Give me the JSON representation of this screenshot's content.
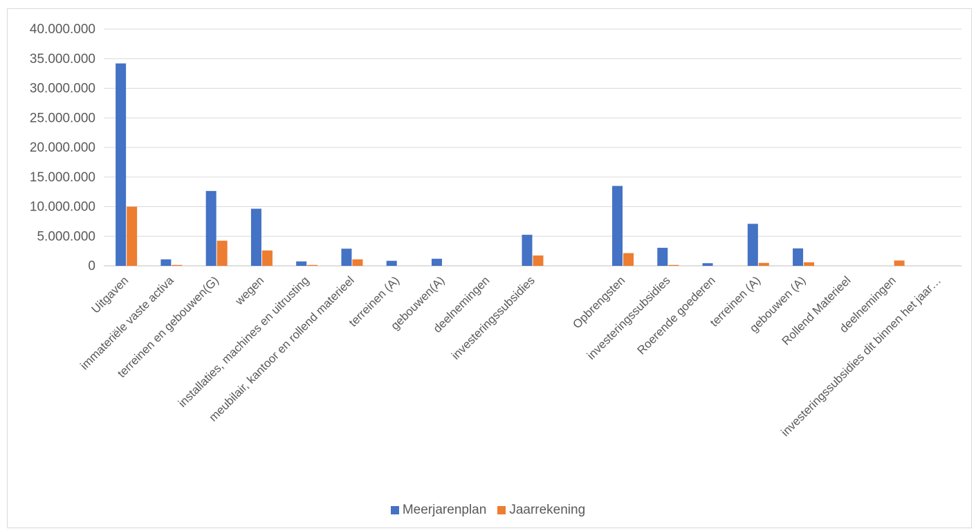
{
  "chart_data": {
    "type": "bar",
    "categories": [
      "Uitgaven",
      "immateriële vaste activa",
      "terreinen  en gebouwen(G)",
      "wegen",
      "installaties, machines en uitrusting",
      "meubilair, kantoor en rollend materieel",
      "terreinen (A)",
      "gebouwen(A)",
      "deelnemingen",
      "investeringssubsidies",
      "",
      "Opbrengsten",
      "investeringssubsidies",
      "Roerende goederen",
      "terreinen (A)",
      "gebouwen (A)",
      "Rollend Materieel",
      "deelnemingen",
      "investeringssubsidies dit binnen het jaar…"
    ],
    "series": [
      {
        "name": "Meerjarenplan",
        "color": "#4472c4",
        "values": [
          34200000,
          1100000,
          12650000,
          9650000,
          750000,
          2900000,
          850000,
          1200000,
          0,
          5250000,
          0,
          13500000,
          3050000,
          450000,
          7100000,
          2950000,
          0,
          0,
          0
        ]
      },
      {
        "name": "Jaarrekening",
        "color": "#ed7d31",
        "values": [
          10000000,
          150000,
          4250000,
          2600000,
          150000,
          1100000,
          0,
          0,
          0,
          1750000,
          0,
          2150000,
          150000,
          0,
          500000,
          600000,
          0,
          900000,
          0
        ]
      }
    ],
    "ylim": [
      0,
      40000000
    ],
    "yticks": [
      "0",
      "5.000.000",
      "10.000.000",
      "15.000.000",
      "20.000.000",
      "25.000.000",
      "30.000.000",
      "35.000.000",
      "40.000.000"
    ],
    "ytick_values": [
      0,
      5000000,
      10000000,
      15000000,
      20000000,
      25000000,
      30000000,
      35000000,
      40000000
    ],
    "grid": true,
    "legend_position": "bottom",
    "title": "",
    "xlabel": "",
    "ylabel": ""
  }
}
